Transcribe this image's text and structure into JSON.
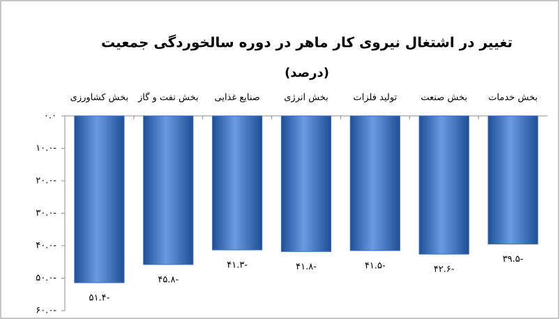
{
  "chart_data": {
    "type": "bar",
    "title": "تغییر در اشتغال نیروی کار ماهر در دوره سالخوردگی جمعیت",
    "subtitle": "(درصد)",
    "categories": [
      "بخش کشاورزی",
      "بخش نفت و گاز",
      "صنایع غذایی",
      "بخش انرژی",
      "تولید فلزات",
      "بخش صنعت",
      "بخش خدمات"
    ],
    "values": [
      -51.4,
      -45.8,
      -41.3,
      -41.8,
      -41.5,
      -42.6,
      -39.5
    ],
    "value_labels": [
      "۵۱.۴-",
      "۴۵.۸-",
      "۴۱.۳-",
      "۴۱.۸-",
      "۴۱.۵-",
      "۴۲.۶-",
      "۳۹.۵-"
    ],
    "color": "#3a70bd",
    "ylim": [
      -60,
      0
    ],
    "yticks": [
      {
        "value": 0,
        "label": "۰.۰"
      },
      {
        "value": -10,
        "label": "۱۰.۰-"
      },
      {
        "value": -20,
        "label": "۲۰.۰-"
      },
      {
        "value": -30,
        "label": "۳۰.۰-"
      },
      {
        "value": -40,
        "label": "۴۰.۰-"
      },
      {
        "value": -50,
        "label": "۵۰.۰-"
      },
      {
        "value": -60,
        "label": "۶۰.۰-"
      }
    ]
  }
}
